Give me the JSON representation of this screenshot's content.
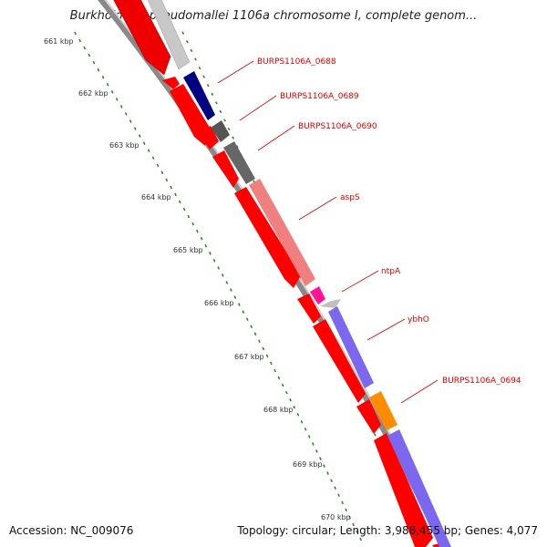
{
  "title": "Burkholderia pseudomallei 1106a chromosome I, complete genom...",
  "footer": {
    "accession": "Accession: NC_009076",
    "stats": "Topology: circular; Length: 3,988,455 bp; Genes: 4,077"
  },
  "colors": {
    "forward_gene": "#ff0000",
    "backbone": "#999999",
    "tick_green": "#2a8a2a",
    "label_red": "#d40000"
  },
  "kbp_ticks": [
    "661 kbp",
    "662 kbp",
    "663 kbp",
    "664 kbp",
    "665 kbp",
    "666 kbp",
    "667 kbp",
    "668 kbp",
    "669 kbp",
    "670 kbp"
  ],
  "gene_labels": [
    "BURPS1106A_0688",
    "BURPS1106A_0689",
    "BURPS1106A_0690",
    "aspS",
    "ntpA",
    "ybhO",
    "BURPS1106A_0694"
  ]
}
